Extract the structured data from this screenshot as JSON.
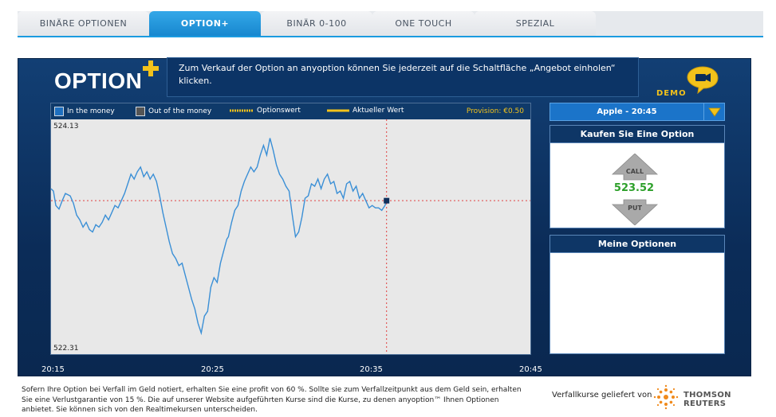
{
  "tabs": [
    {
      "label": "BINÄRE OPTIONEN",
      "active": false
    },
    {
      "label": "OPTION+",
      "active": true
    },
    {
      "label": "BINÄR 0-100",
      "active": false
    },
    {
      "label": "ONE TOUCH",
      "active": false
    },
    {
      "label": "SPEZIAL",
      "active": false
    }
  ],
  "header": {
    "logo_text": "OPTION",
    "info_message": "Zum Verkauf der Option an anyoption können Sie jederzeit auf die Schaltfläche „Angebot einholen“ klicken.",
    "demo_label": "DEMO"
  },
  "legend": {
    "in_the_money": "In the money",
    "out_of_money": "Out of the money",
    "option_value": "Optionswert",
    "current_value": "Aktueller Wert",
    "provision": "Provision: €0.50"
  },
  "chart_data": {
    "type": "line",
    "title": "",
    "price_top_label": "524.13",
    "price_bottom_label": "522.31",
    "ylim": [
      522.31,
      524.13
    ],
    "x_ticks": [
      "20:15",
      "20:25",
      "20:35",
      "20:45"
    ],
    "x_range_minutes": [
      0,
      30
    ],
    "current_time_min": 21,
    "current_price": 523.52,
    "series": [
      {
        "x": [
          0,
          0.15,
          0.3,
          0.5,
          0.7,
          0.9,
          1.2,
          1.4,
          1.6,
          1.8,
          2.0,
          2.2,
          2.4,
          2.6,
          2.8,
          3.0,
          3.2,
          3.4,
          3.6,
          3.8,
          4.0,
          4.2,
          4.4,
          4.6,
          4.8,
          5.0,
          5.2,
          5.4,
          5.6,
          5.8,
          6.0,
          6.2,
          6.4,
          6.6,
          6.8,
          7.0,
          7.2,
          7.4,
          7.6,
          7.8,
          8.0,
          8.2,
          8.4,
          8.6,
          8.8,
          9.0,
          9.2,
          9.4,
          9.6,
          9.8,
          10.0,
          10.2,
          10.4,
          10.6,
          10.8,
          11.0,
          11.1,
          11.3,
          11.5,
          11.7,
          11.9,
          12.1,
          12.3,
          12.5,
          12.7,
          12.9,
          13.1,
          13.3,
          13.5,
          13.7,
          13.9,
          14.1,
          14.3,
          14.5,
          14.7,
          14.9,
          15.1,
          15.3,
          15.5,
          15.7,
          15.9,
          16.1,
          16.3,
          16.5,
          16.7,
          16.9,
          17.1,
          17.3,
          17.5,
          17.7,
          17.9,
          18.1,
          18.3,
          18.5,
          18.7,
          18.9,
          19.1,
          19.3,
          19.5,
          19.7,
          19.9,
          20.1,
          20.3,
          20.5,
          20.7,
          20.9,
          21.0
        ],
        "y": [
          523.62,
          523.6,
          523.48,
          523.45,
          523.52,
          523.58,
          523.56,
          523.5,
          523.4,
          523.36,
          523.3,
          523.34,
          523.28,
          523.26,
          523.32,
          523.3,
          523.34,
          523.4,
          523.36,
          523.42,
          523.48,
          523.46,
          523.52,
          523.58,
          523.66,
          523.74,
          523.7,
          523.76,
          523.8,
          523.72,
          523.76,
          523.7,
          523.74,
          523.68,
          523.56,
          523.42,
          523.3,
          523.18,
          523.08,
          523.04,
          522.98,
          523.0,
          522.9,
          522.8,
          522.7,
          522.62,
          522.5,
          522.42,
          522.56,
          522.6,
          522.8,
          522.88,
          522.84,
          523.0,
          523.1,
          523.2,
          523.22,
          523.34,
          523.44,
          523.48,
          523.6,
          523.68,
          523.74,
          523.8,
          523.76,
          523.8,
          523.9,
          523.98,
          523.9,
          524.04,
          523.94,
          523.82,
          523.74,
          523.7,
          523.64,
          523.6,
          523.4,
          523.22,
          523.26,
          523.38,
          523.54,
          523.56,
          523.66,
          523.64,
          523.7,
          523.62,
          523.7,
          523.74,
          523.66,
          523.68,
          523.58,
          523.6,
          523.54,
          523.66,
          523.68,
          523.6,
          523.64,
          523.54,
          523.58,
          523.52,
          523.46,
          523.48,
          523.46,
          523.46,
          523.44,
          523.48,
          523.52
        ]
      }
    ]
  },
  "asset_selector": {
    "label": "Apple - 20:45"
  },
  "buy_box": {
    "title": "Kaufen Sie Eine Option",
    "call_label": "CALL",
    "put_label": "PUT",
    "price": "523.52"
  },
  "my_options": {
    "title": "Meine Optionen"
  },
  "footer": {
    "disclaimer": "Sofern Ihre Option bei Verfall im Geld notiert, erhalten Sie eine profit von 60 %. Sollte sie zum Verfallzeitpunkt aus dem Geld sein, erhalten Sie eine Verlustgarantie von 15 %. Die auf unserer Website aufgeführten Kurse sind die Kurse, zu denen anyoption™ Ihnen Optionen anbietet. Sie können sich von den Realtimekursen unterscheiden.",
    "provider_label": "Verfallkurse geliefert von",
    "provider_name": "THOMSON REUTERS"
  },
  "colors": {
    "accent": "#1a9be0",
    "panel": "#0b2c58",
    "gold": "#f2c21b",
    "line": "#3a8fd6",
    "price_green": "#2da02a"
  }
}
